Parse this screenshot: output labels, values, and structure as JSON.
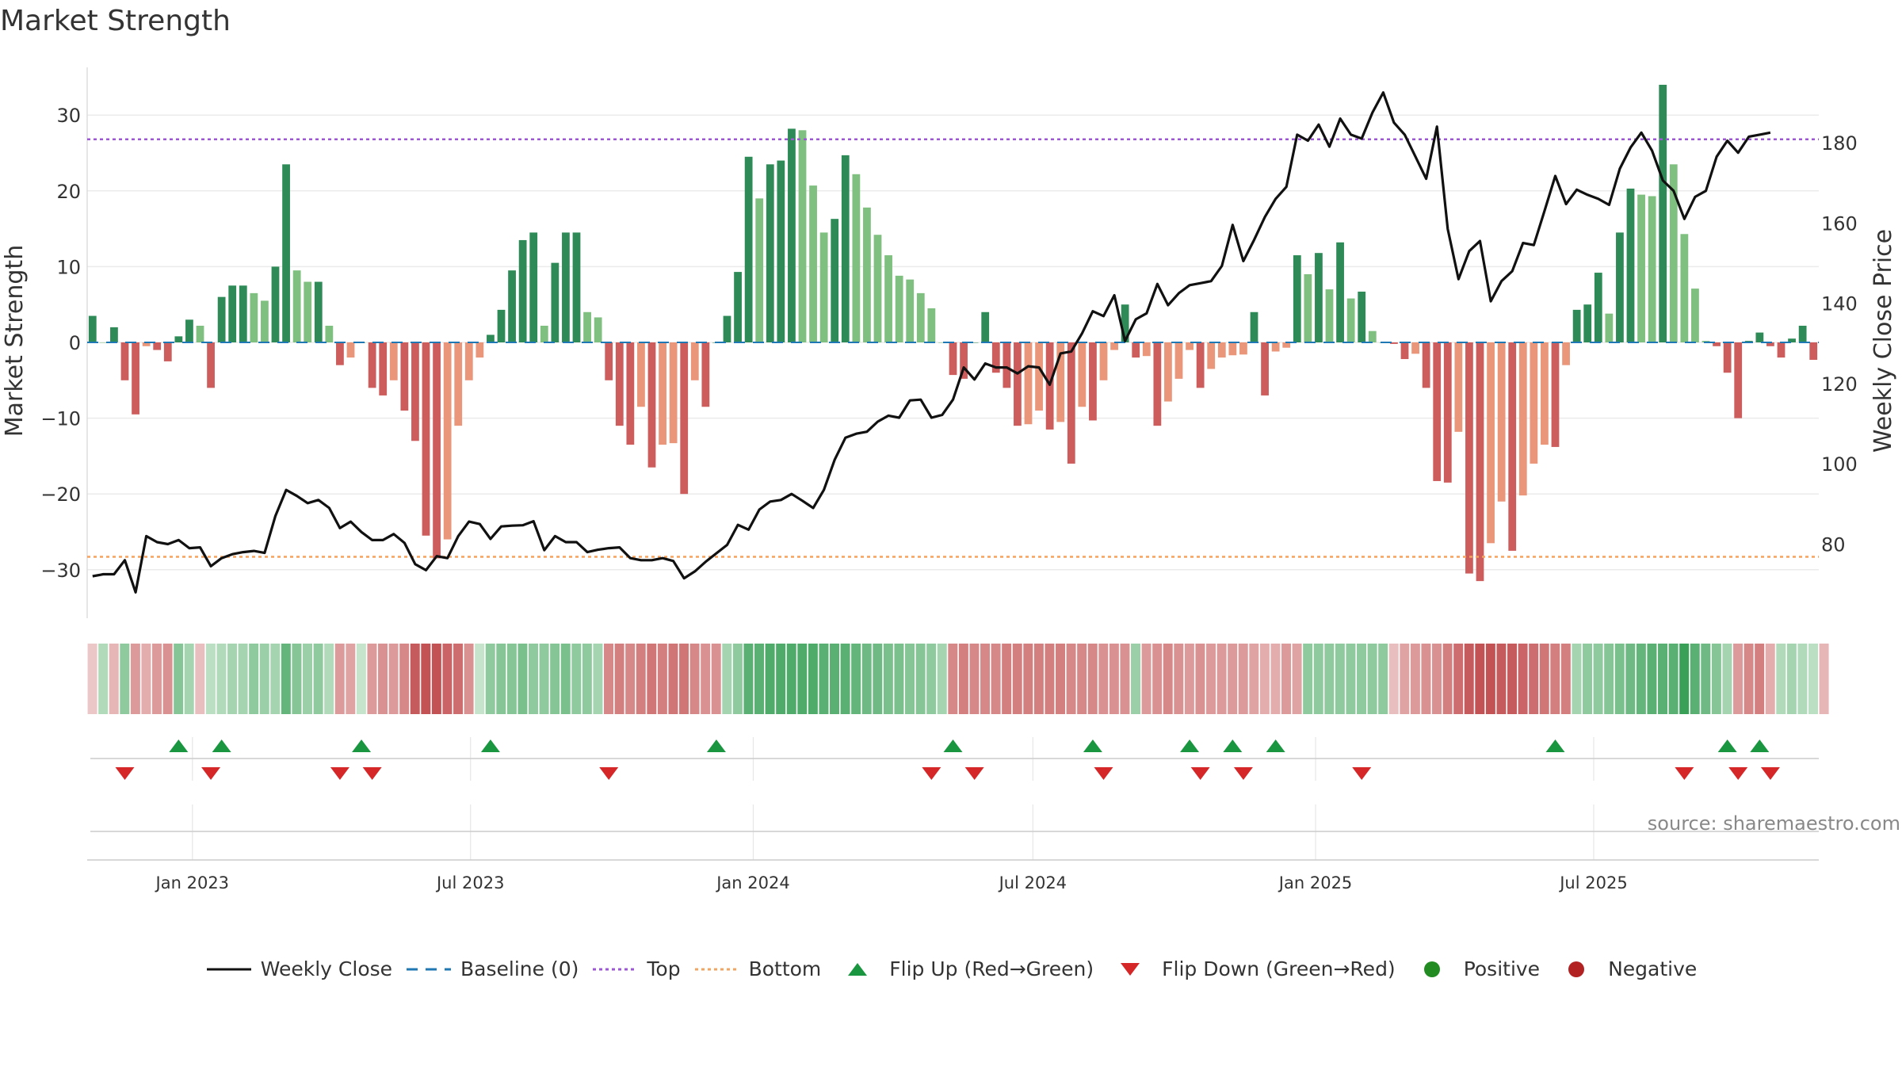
{
  "title": "Market Strength",
  "source": "source: sharemaestro.com",
  "colors": {
    "strong_green": "#2e8b57",
    "light_green": "#7fbf7f",
    "strong_red": "#cd5c5c",
    "light_red": "#e9967a",
    "close_line": "#111111",
    "baseline": "#1f77b4",
    "top": "#9b59d0",
    "bottom": "#f4a460",
    "flip_up": "#1a9641",
    "flip_down": "#d62728",
    "positive": "#228b22",
    "negative": "#b22222"
  },
  "legend": [
    {
      "key": "close",
      "label": "Weekly Close",
      "icon": "solid-line"
    },
    {
      "key": "baseline",
      "label": "Baseline (0)",
      "icon": "dashed-line"
    },
    {
      "key": "top",
      "label": "Top",
      "icon": "dotted-line"
    },
    {
      "key": "bottom",
      "label": "Bottom",
      "icon": "dotted-line"
    },
    {
      "key": "flip_up",
      "label": "Flip Up (Red→Green)",
      "icon": "triangle-up"
    },
    {
      "key": "flip_down",
      "label": "Flip Down (Green→Red)",
      "icon": "triangle-down"
    },
    {
      "key": "positive",
      "label": "Positive",
      "icon": "circle"
    },
    {
      "key": "negative",
      "label": "Negative",
      "icon": "circle"
    }
  ],
  "chart_data": {
    "type": "bar",
    "title": "Market Strength",
    "ylabel": "Market Strength",
    "y2label": "Weekly Close Price",
    "ylim": [
      -36,
      37
    ],
    "y2lim": [
      63,
      201
    ],
    "yticks": [
      30,
      20,
      10,
      0,
      -10,
      -20,
      -30
    ],
    "ytick_labels": [
      "30",
      "20",
      "10",
      "0",
      "−10",
      "−20",
      "−30"
    ],
    "y2ticks": [
      180,
      160,
      140,
      120,
      100,
      80
    ],
    "top_level": 26.8,
    "bottom_level": -28.3,
    "x_start": "2022-10-28",
    "week_days": 7,
    "x_ticks": [
      {
        "label": "Jan 2023",
        "date": "2023-01-01"
      },
      {
        "label": "Jul 2023",
        "date": "2023-07-01"
      },
      {
        "label": "Jan 2024",
        "date": "2024-01-01"
      },
      {
        "label": "Jul 2024",
        "date": "2024-07-01"
      },
      {
        "label": "Jan 2025",
        "date": "2025-01-01"
      },
      {
        "label": "Jul 2025",
        "date": "2025-07-01"
      }
    ],
    "strength": [
      3.5,
      0,
      2,
      -5,
      -9.5,
      -0.5,
      -1,
      -2.5,
      0.8,
      3,
      2.2,
      -6,
      6,
      7.5,
      7.5,
      6.5,
      5.5,
      10,
      23.5,
      9.5,
      8,
      8,
      2.2,
      -3,
      -2,
      0,
      -6,
      -7,
      -5,
      -9,
      -13,
      -25.5,
      -28.5,
      -26,
      -11,
      -5,
      -2,
      1,
      4.3,
      9.5,
      13.5,
      14.5,
      2.2,
      10.5,
      14.5,
      14.5,
      4,
      3.3,
      -5,
      -11,
      -13.5,
      -8.5,
      -16.5,
      -13.5,
      -13.3,
      -20,
      -5,
      -8.5,
      0,
      3.5,
      9.3,
      24.5,
      19,
      23.5,
      24,
      28.2,
      28,
      20.7,
      14.5,
      16.3,
      24.7,
      22.2,
      17.8,
      14.2,
      11.5,
      8.8,
      8.3,
      6.5,
      4.5,
      0,
      -4.3,
      -4.8,
      0,
      4,
      -4,
      -6,
      -11,
      -10.8,
      -9,
      -11.5,
      -10.5,
      -16,
      -8.5,
      -10.3,
      -5,
      -1,
      5,
      -2,
      -1.8,
      -11,
      -7.8,
      -4.8,
      -1,
      -6,
      -3.5,
      -2,
      -1.7,
      -1.6,
      4,
      -7,
      -1.2,
      -0.7,
      11.5,
      9,
      11.8,
      7,
      13.2,
      5.8,
      6.7,
      1.5,
      0,
      -0.2,
      -2.2,
      -1.5,
      -6,
      -18.3,
      -18.5,
      -11.8,
      -30.5,
      -31.5,
      -26.5,
      -21,
      -27.5,
      -20.2,
      -16,
      -13.5,
      -13.8,
      -3,
      4.3,
      5,
      9.2,
      3.8,
      14.5,
      20.3,
      19.5,
      19.3,
      34,
      23.5,
      14.3,
      7.1,
      0.2,
      -0.5,
      -4,
      -10,
      0.2,
      1.3,
      -0.5,
      -2,
      0.5,
      2.2,
      -2.3
    ],
    "close": [
      72,
      72.5,
      72.5,
      76,
      68,
      82,
      80.5,
      80,
      81,
      79,
      79.2,
      74.5,
      76.5,
      77.5,
      78,
      78.3,
      77.8,
      87,
      93.5,
      92,
      90.2,
      91,
      89,
      84,
      85.6,
      83,
      81,
      81,
      82.5,
      80.3,
      75,
      73.5,
      77,
      76.5,
      82,
      85.6,
      85,
      81.3,
      84.4,
      84.6,
      84.7,
      85.7,
      78.5,
      82,
      80.5,
      80.5,
      78,
      78.6,
      79,
      79.2,
      76.5,
      76,
      76,
      76.5,
      75.8,
      71.5,
      73.2,
      75.6,
      77.7,
      79.8,
      84.8,
      83.6,
      88.6,
      90.6,
      91,
      92.5,
      90.8,
      89,
      93.5,
      101,
      106.5,
      107.5,
      108,
      110.5,
      112,
      111.5,
      115.8,
      116,
      111.5,
      112.2,
      116,
      124,
      121,
      125,
      124,
      124,
      122.5,
      124.3,
      124,
      119.7,
      127.5,
      128,
      132.5,
      138,
      136.8,
      142,
      130.6,
      136,
      137.5,
      144.8,
      139.5,
      142.5,
      144.5,
      145,
      145.5,
      149.3,
      159.5,
      150.5,
      155.8,
      161.5,
      166,
      169,
      182,
      180.5,
      184.5,
      179,
      186,
      182,
      181,
      187.5,
      192.5,
      185,
      182,
      176.5,
      171,
      184,
      158.5,
      146,
      153,
      155.5,
      140.5,
      145.5,
      148,
      155,
      154.5,
      163,
      171.7,
      164.7,
      168.3,
      167,
      166,
      164.5,
      173.5,
      178.8,
      182.5,
      178,
      170.6,
      168,
      161,
      166.5,
      168,
      176.5,
      180.5,
      177.5,
      181.5,
      182,
      182.5
    ],
    "heatmap_intensity": [
      -0.3,
      0.5,
      -0.5,
      0.8,
      -0.8,
      -0.6,
      -0.8,
      -0.9,
      0.9,
      0.6,
      -0.4,
      0.4,
      0.5,
      0.6,
      0.6,
      0.8,
      0.7,
      0.6,
      1.2,
      0.9,
      0.7,
      0.8,
      0.5,
      -0.8,
      -0.7,
      0.3,
      -0.8,
      -0.9,
      -0.8,
      -1,
      -1.5,
      -1.6,
      -1.6,
      -1.4,
      -1.3,
      -0.9,
      0.3,
      0.8,
      0.9,
      0.9,
      1,
      0.8,
      0.8,
      0.9,
      1,
      0.8,
      0.8,
      0.6,
      -1,
      -1.1,
      -1,
      -1.1,
      -1.2,
      -1.1,
      -1.2,
      -1.2,
      -1,
      -0.9,
      -0.9,
      0.6,
      0.8,
      1.3,
      1.3,
      1.4,
      1.4,
      1.4,
      1.4,
      1.4,
      1.3,
      1.3,
      1.3,
      1.2,
      1.1,
      1.1,
      1,
      1,
      0.9,
      0.9,
      0.8,
      0.6,
      -1,
      -1.1,
      -1,
      -1,
      -1,
      -1.1,
      -1.1,
      -1.1,
      -1.1,
      -1.1,
      -1.1,
      -1,
      -1,
      -1,
      -0.9,
      -0.9,
      -0.9,
      0.7,
      -0.8,
      -0.9,
      -1,
      -0.9,
      -0.8,
      -0.9,
      -0.8,
      -0.8,
      -0.8,
      -0.8,
      -0.7,
      -0.6,
      -0.6,
      -0.8,
      -0.7,
      0.8,
      0.8,
      0.8,
      0.8,
      0.8,
      0.8,
      0.8,
      0.8,
      -0.4,
      -0.7,
      -0.8,
      -0.9,
      -0.9,
      -1.1,
      -1.3,
      -1.5,
      -1.6,
      -1.6,
      -1.5,
      -1.5,
      -1.4,
      -1.3,
      -1.2,
      -1.1,
      -1.1,
      0.6,
      0.8,
      0.8,
      0.9,
      1,
      1.1,
      1.2,
      1.3,
      1.3,
      1.3,
      1.6,
      1.3,
      1.1,
      0.9,
      0.6,
      -0.8,
      -1,
      -1.1,
      -0.6,
      0.5,
      0.6,
      0.5,
      0.4,
      -0.5
    ]
  },
  "flips": {
    "up_weeks": [
      8,
      12,
      25,
      37,
      58,
      80,
      93,
      102,
      106,
      110,
      136,
      152,
      155
    ],
    "down_weeks": [
      3,
      11,
      23,
      26,
      48,
      78,
      82,
      94,
      103,
      107,
      118,
      148,
      153,
      156
    ]
  },
  "ylabel": "Market Strength",
  "y2label": "Weekly Close Price"
}
